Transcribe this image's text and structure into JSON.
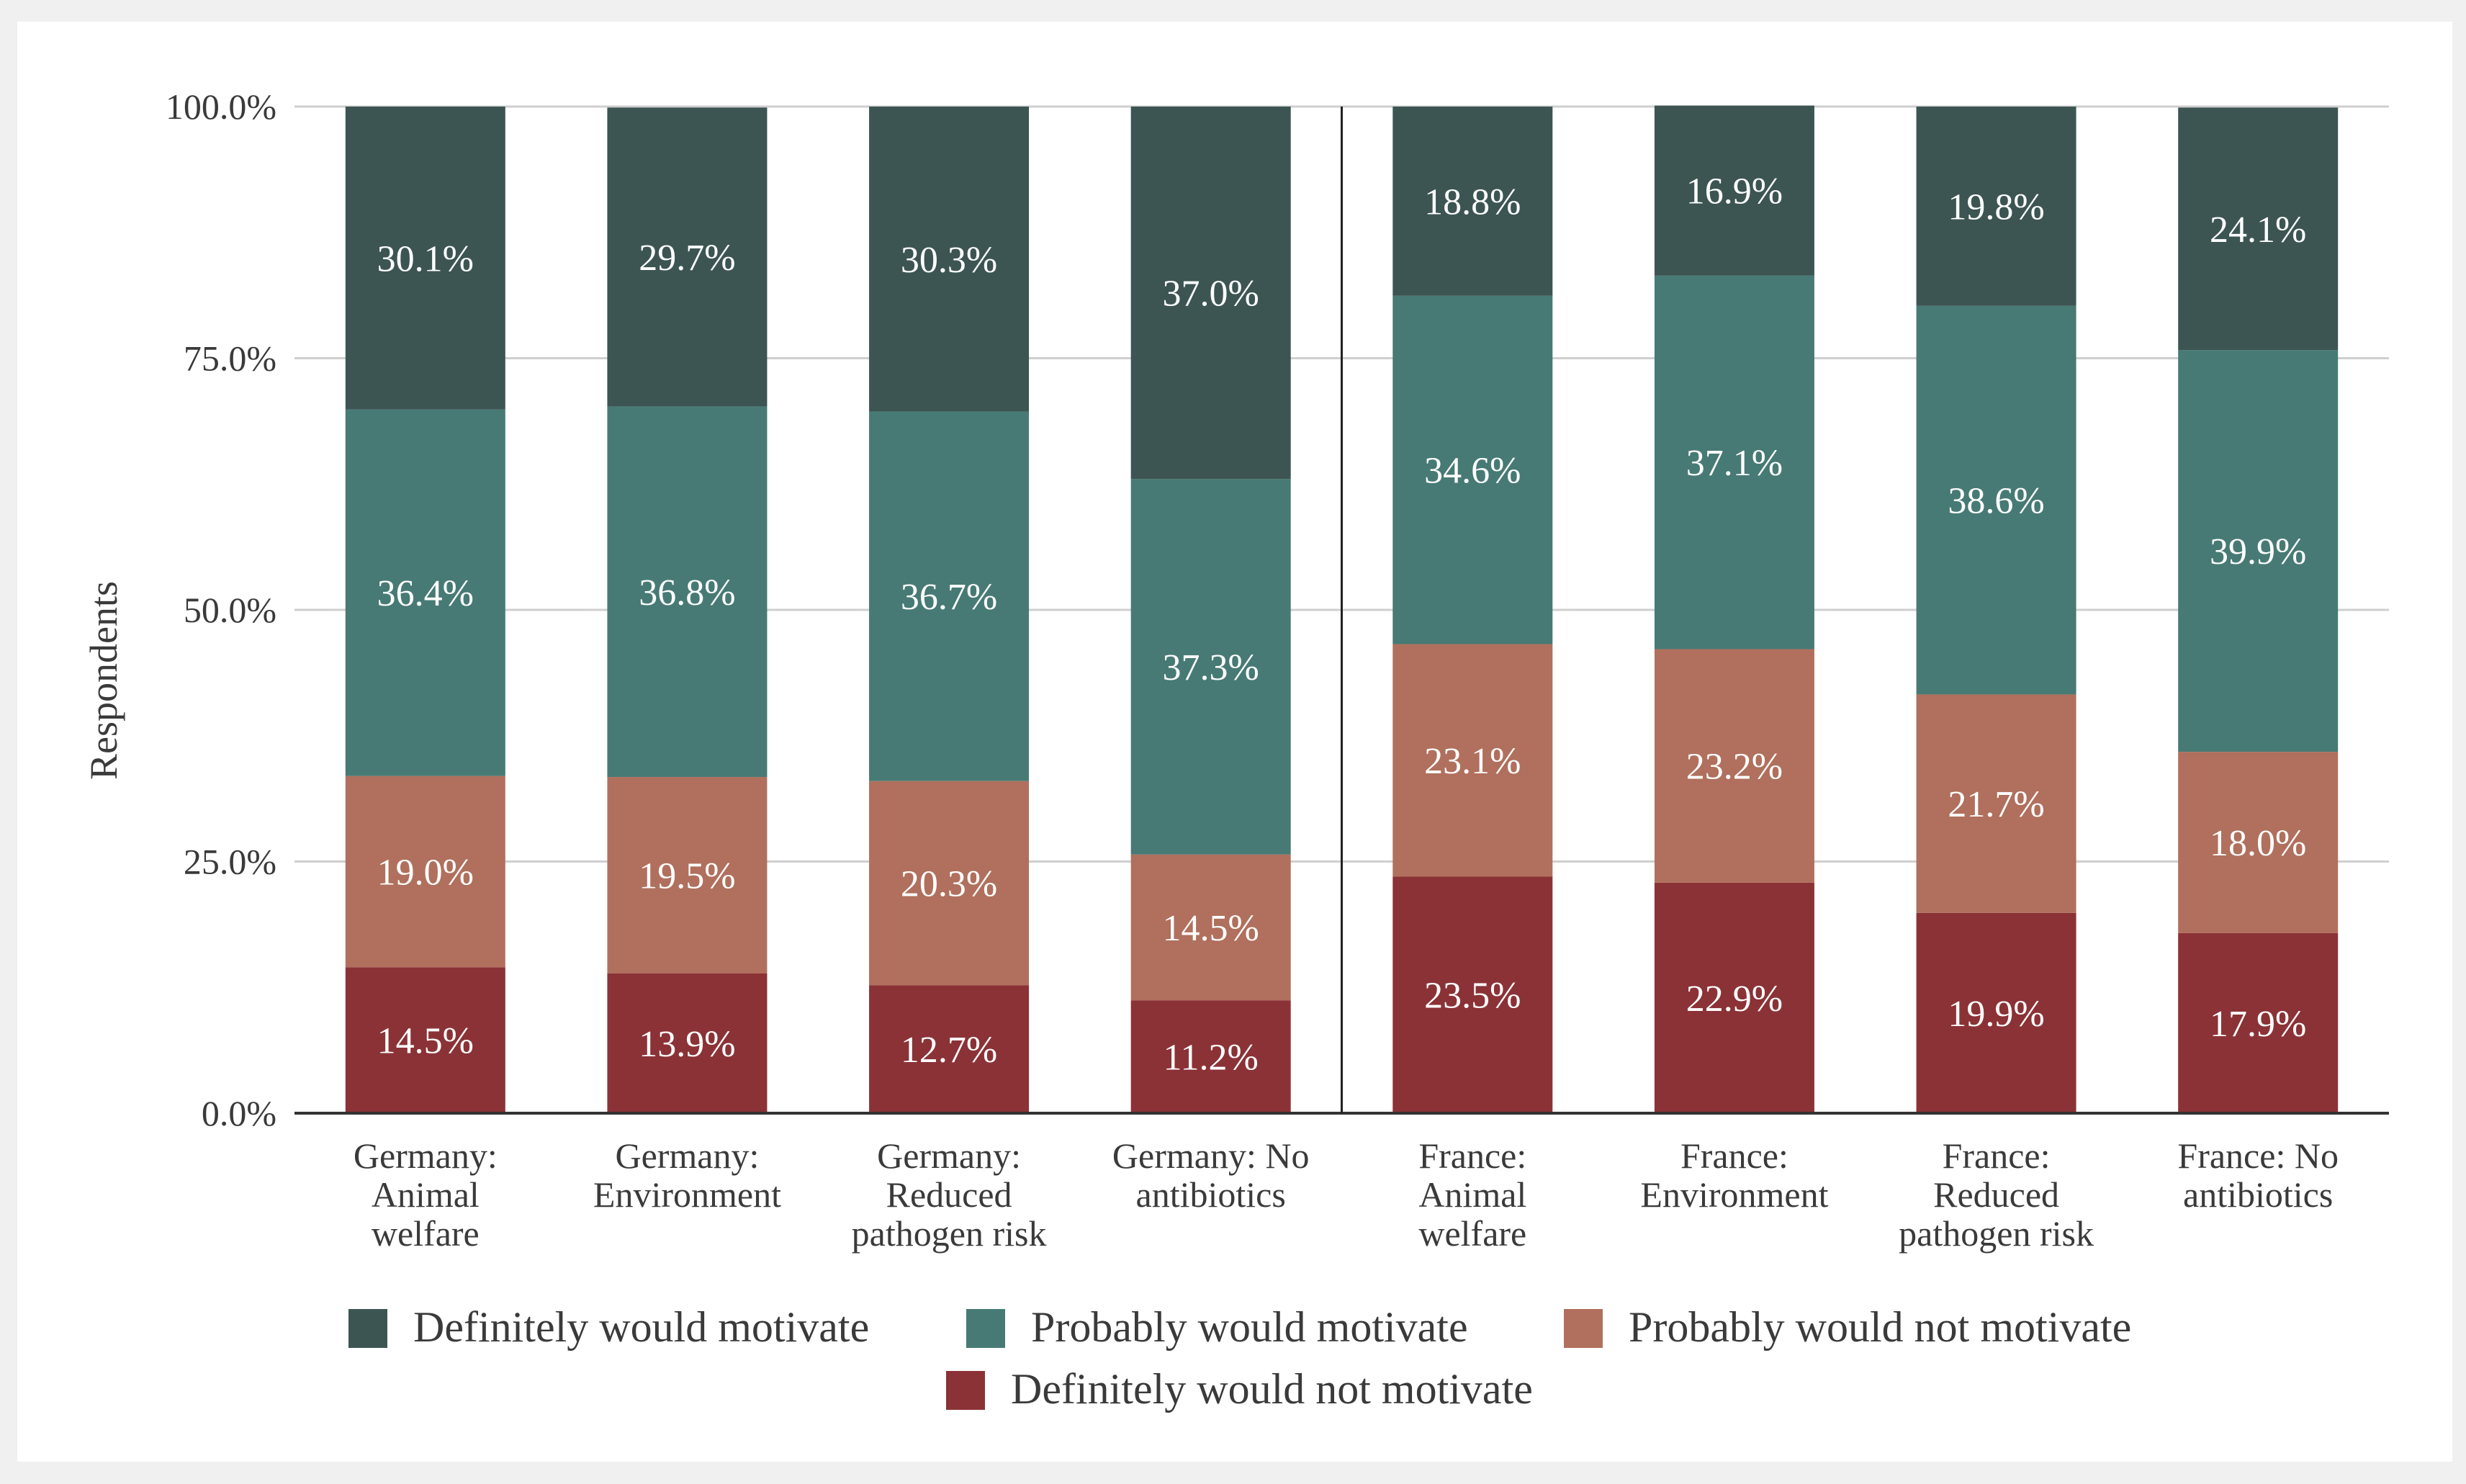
{
  "chart_data": {
    "type": "bar",
    "stacked": true,
    "title": "",
    "xlabel": "",
    "ylabel": "Respondents",
    "ylim": [
      0,
      100
    ],
    "yticks": [
      "0.0%",
      "25.0%",
      "50.0%",
      "75.0%",
      "100.0%"
    ],
    "grid": true,
    "legend_position": "bottom",
    "divider_after_category": 4,
    "categories": [
      [
        "Germany:",
        "Animal",
        "welfare"
      ],
      [
        "Germany:",
        "Environment"
      ],
      [
        "Germany:",
        "Reduced",
        "pathogen risk"
      ],
      [
        "Germany: No",
        "antibiotics"
      ],
      [
        "France:",
        "Animal",
        "welfare"
      ],
      [
        "France:",
        "Environment"
      ],
      [
        "France:",
        "Reduced",
        "pathogen risk"
      ],
      [
        "France: No",
        "antibiotics"
      ]
    ],
    "series": [
      {
        "name": "Definitely would not motivate",
        "color": "#8b3236",
        "values": [
          14.5,
          13.9,
          12.7,
          11.2,
          23.5,
          22.9,
          19.9,
          17.9
        ],
        "labels": [
          "14.5%",
          "13.9%",
          "12.7%",
          "11.2%",
          "23.5%",
          "22.9%",
          "19.9%",
          "17.9%"
        ]
      },
      {
        "name": "Probably would not motivate",
        "color": "#b0705d",
        "values": [
          19.0,
          19.5,
          20.3,
          14.5,
          23.1,
          23.2,
          21.7,
          18.0
        ],
        "labels": [
          "19.0%",
          "19.5%",
          "20.3%",
          "14.5%",
          "23.1%",
          "23.2%",
          "21.7%",
          "18.0%"
        ]
      },
      {
        "name": "Probably would motivate",
        "color": "#477a74",
        "values": [
          36.4,
          36.8,
          36.7,
          37.3,
          34.6,
          37.1,
          38.6,
          39.9
        ],
        "labels": [
          "36.4%",
          "36.8%",
          "36.7%",
          "37.3%",
          "34.6%",
          "37.1%",
          "38.6%",
          "39.9%"
        ]
      },
      {
        "name": "Definitely would motivate",
        "color": "#3c5553",
        "values": [
          30.1,
          29.7,
          30.3,
          37.0,
          18.8,
          16.9,
          19.8,
          24.1
        ],
        "labels": [
          "30.1%",
          "29.7%",
          "30.3%",
          "37.0%",
          "18.8%",
          "16.9%",
          "19.8%",
          "24.1%"
        ]
      }
    ],
    "legend_order": [
      "Definitely would motivate",
      "Probably would motivate",
      "Probably would not motivate",
      "Definitely would not motivate"
    ]
  }
}
